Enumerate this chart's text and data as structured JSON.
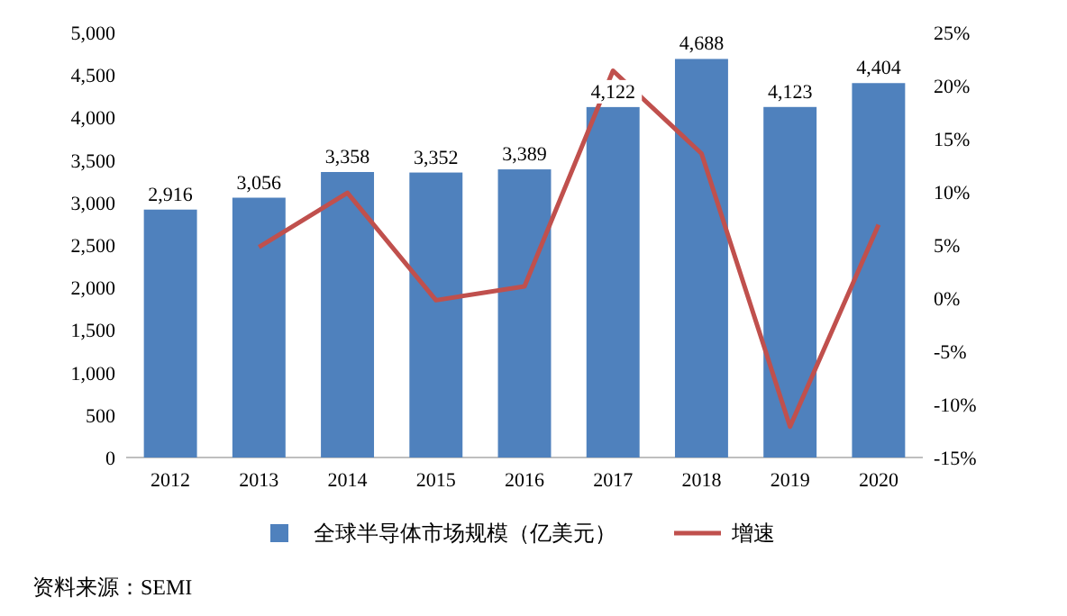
{
  "chart_data": {
    "type": "bar",
    "categories": [
      "2012",
      "2013",
      "2014",
      "2015",
      "2016",
      "2017",
      "2018",
      "2019",
      "2020"
    ],
    "series": [
      {
        "name": "全球半导体市场规模（亿美元）",
        "color": "#4f81bd",
        "values": [
          2916,
          3056,
          3358,
          3352,
          3389,
          4122,
          4688,
          4123,
          4404
        ],
        "value_labels": [
          "2,916",
          "3,056",
          "3,358",
          "3,352",
          "3,389",
          "4,122",
          "4,688",
          "4,123",
          "4,404"
        ]
      },
      {
        "name": "增速",
        "type": "line",
        "axis": "y2",
        "color": "#c0504d",
        "values": [
          null,
          4.8,
          9.9,
          -0.2,
          1.1,
          21.4,
          13.6,
          -12.1,
          6.9
        ]
      }
    ],
    "ylim": [
      0,
      5000
    ],
    "yticks": [
      0,
      {
        "value": 500,
        "label": "500"
      },
      {
        "value": 1000,
        "label": "1,000"
      },
      {
        "value": 1500,
        "label": "1,500"
      },
      {
        "value": 2000,
        "label": "2,000"
      },
      {
        "value": 2500,
        "label": "2,500"
      },
      {
        "value": 3000,
        "label": "3,000"
      },
      {
        "value": 3500,
        "label": "3,500"
      },
      {
        "value": 4000,
        "label": "4,000"
      },
      {
        "value": 4500,
        "label": "4,500"
      },
      {
        "value": 5000,
        "label": "5,000"
      }
    ],
    "y2lim": [
      -15,
      25
    ],
    "y2ticks": [
      {
        "value": -15,
        "label": "-15%"
      },
      {
        "value": -10,
        "label": "-10%"
      },
      {
        "value": -5,
        "label": "-5%"
      },
      {
        "value": 0,
        "label": "0%"
      },
      {
        "value": 5,
        "label": "5%"
      },
      {
        "value": 10,
        "label": "10%"
      },
      {
        "value": 15,
        "label": "15%"
      },
      {
        "value": 20,
        "label": "20%"
      },
      {
        "value": 25,
        "label": "25%"
      }
    ],
    "legend": "bottom",
    "grid": false,
    "annotations": [
      "资料来源：SEMI"
    ]
  }
}
